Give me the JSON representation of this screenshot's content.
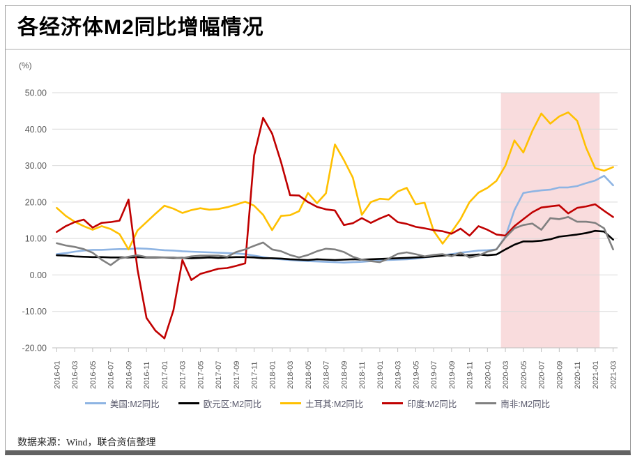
{
  "header": {
    "title": "各经济体M2同比增幅情况"
  },
  "footer": {
    "source": "数据来源：Wind，联合资信整理"
  },
  "chart_data": {
    "type": "line",
    "title": "各经济体M2同比增幅情况",
    "unit_label": "(%)",
    "ylim": [
      -20,
      50
    ],
    "y_tick_step": 10,
    "y_tick_labels": [
      "50.00",
      "40.00",
      "30.00",
      "20.00",
      "10.00",
      "0.00",
      "-10.00",
      "-20.00"
    ],
    "grid": true,
    "legend_position": "bottom",
    "x_label_rotation": 90,
    "x_tick_every": 2,
    "highlight_region": {
      "from": "2020-03",
      "to": "2021-01",
      "color": "#f9dcdd"
    },
    "x": [
      "2016-01",
      "2016-02",
      "2016-03",
      "2016-04",
      "2016-05",
      "2016-06",
      "2016-07",
      "2016-08",
      "2016-09",
      "2016-10",
      "2016-11",
      "2016-12",
      "2017-01",
      "2017-02",
      "2017-03",
      "2017-04",
      "2017-05",
      "2017-06",
      "2017-07",
      "2017-08",
      "2017-09",
      "2017-10",
      "2017-11",
      "2017-12",
      "2018-01",
      "2018-02",
      "2018-03",
      "2018-04",
      "2018-05",
      "2018-06",
      "2018-07",
      "2018-08",
      "2018-09",
      "2018-10",
      "2018-11",
      "2018-12",
      "2019-01",
      "2019-02",
      "2019-03",
      "2019-04",
      "2019-05",
      "2019-06",
      "2019-07",
      "2019-08",
      "2019-09",
      "2019-10",
      "2019-11",
      "2019-12",
      "2020-01",
      "2020-02",
      "2020-03",
      "2020-04",
      "2020-05",
      "2020-06",
      "2020-07",
      "2020-08",
      "2020-09",
      "2020-10",
      "2020-11",
      "2020-12",
      "2021-01",
      "2021-02",
      "2021-03"
    ],
    "x_tick_labels": [
      "2016-01",
      "2016-03",
      "2016-05",
      "2016-07",
      "2016-09",
      "2016-11",
      "2017-01",
      "2017-03",
      "2017-05",
      "2017-07",
      "2017-09",
      "2017-11",
      "2018-01",
      "2018-03",
      "2018-05",
      "2018-07",
      "2018-09",
      "2018-11",
      "2019-01",
      "2019-03",
      "2019-05",
      "2019-07",
      "2019-09",
      "2019-11",
      "2020-01",
      "2020-03",
      "2020-05",
      "2020-07",
      "2020-09",
      "2020-11",
      "2021-01",
      "2021-03"
    ],
    "series": [
      {
        "name": "美国:M2同比",
        "color": "#8eb4e3",
        "values": [
          5.7,
          6.0,
          6.4,
          6.7,
          6.9,
          6.9,
          7.0,
          7.1,
          7.1,
          7.3,
          7.2,
          7.0,
          6.8,
          6.7,
          6.5,
          6.4,
          6.3,
          6.2,
          6.1,
          6.0,
          5.9,
          5.7,
          5.3,
          4.9,
          4.5,
          4.3,
          4.1,
          3.9,
          3.8,
          3.7,
          3.6,
          3.5,
          3.4,
          3.5,
          3.6,
          3.8,
          4.0,
          4.1,
          4.2,
          4.3,
          4.5,
          4.8,
          5.1,
          5.4,
          5.7,
          6.1,
          6.4,
          6.7,
          6.8,
          7.0,
          10.5,
          17.8,
          22.5,
          22.9,
          23.2,
          23.4,
          24.0,
          24.0,
          24.4,
          25.2,
          25.9,
          27.2,
          24.6
        ]
      },
      {
        "name": "欧元区:M2同比",
        "color": "#000000",
        "values": [
          5.4,
          5.3,
          5.1,
          5.0,
          4.9,
          4.9,
          4.8,
          4.8,
          4.8,
          4.9,
          4.8,
          4.8,
          4.8,
          4.7,
          4.7,
          4.6,
          4.7,
          4.8,
          4.7,
          4.8,
          4.9,
          4.9,
          4.8,
          4.6,
          4.6,
          4.5,
          4.3,
          4.2,
          4.1,
          4.3,
          4.2,
          4.1,
          4.2,
          4.3,
          4.2,
          4.3,
          4.4,
          4.5,
          4.6,
          4.7,
          4.8,
          4.9,
          5.1,
          5.3,
          5.5,
          5.4,
          5.4,
          5.6,
          5.4,
          5.6,
          7.0,
          8.3,
          9.2,
          9.2,
          9.4,
          9.8,
          10.5,
          10.8,
          11.1,
          11.5,
          12.1,
          11.9,
          9.7
        ]
      },
      {
        "name": "土耳其:M2同比",
        "color": "#ffc000",
        "values": [
          18.4,
          16.2,
          14.6,
          13.4,
          12.4,
          13.4,
          12.6,
          11.2,
          7.0,
          12.2,
          14.5,
          16.8,
          19.0,
          18.2,
          17.0,
          17.8,
          18.3,
          17.9,
          18.1,
          18.6,
          19.3,
          20.1,
          19.0,
          16.5,
          12.3,
          16.2,
          16.4,
          17.5,
          22.5,
          19.7,
          22.4,
          35.8,
          31.5,
          26.7,
          16.5,
          20.0,
          20.9,
          20.7,
          22.9,
          23.9,
          19.4,
          19.8,
          12.1,
          8.6,
          11.8,
          15.3,
          20.0,
          22.6,
          23.9,
          25.8,
          30.0,
          36.9,
          33.6,
          39.5,
          44.3,
          41.5,
          43.5,
          44.6,
          42.3,
          34.9,
          29.3,
          28.6,
          29.6
        ]
      },
      {
        "name": "印度:M2同比",
        "color": "#c00000",
        "values": [
          11.8,
          13.4,
          14.5,
          15.2,
          13.0,
          14.3,
          14.5,
          14.9,
          20.7,
          1.5,
          -11.8,
          -15.3,
          -17.4,
          -9.7,
          4.1,
          -1.4,
          0.3,
          1.0,
          1.7,
          1.9,
          2.5,
          3.2,
          32.8,
          43.1,
          38.8,
          30.9,
          21.9,
          21.8,
          20.0,
          18.7,
          18.0,
          17.7,
          13.7,
          14.2,
          15.6,
          14.3,
          15.5,
          16.5,
          14.5,
          14.0,
          13.2,
          12.8,
          12.3,
          12.0,
          11.3,
          12.7,
          10.8,
          13.4,
          12.4,
          11.1,
          10.8,
          13.4,
          15.3,
          17.2,
          18.5,
          18.8,
          19.1,
          16.9,
          18.4,
          18.8,
          19.4,
          17.6,
          15.9
        ]
      },
      {
        "name": "南非:M2同比",
        "color": "#808080",
        "values": [
          8.7,
          8.1,
          7.7,
          7.1,
          6.1,
          4.2,
          2.7,
          4.5,
          5.0,
          5.4,
          4.9,
          4.9,
          4.8,
          4.8,
          4.6,
          5.1,
          5.3,
          5.3,
          5.3,
          5.0,
          6.3,
          7.0,
          8.0,
          8.9,
          7.0,
          6.5,
          5.5,
          4.8,
          5.5,
          6.5,
          7.2,
          7.0,
          6.3,
          5.0,
          4.2,
          3.8,
          3.5,
          4.5,
          5.8,
          6.2,
          5.7,
          5.1,
          5.5,
          5.7,
          5.1,
          6.1,
          4.8,
          5.3,
          6.4,
          7.0,
          10.3,
          12.8,
          13.7,
          14.1,
          12.4,
          15.6,
          15.3,
          15.9,
          14.6,
          14.6,
          14.3,
          12.8,
          7.0
        ]
      }
    ]
  }
}
